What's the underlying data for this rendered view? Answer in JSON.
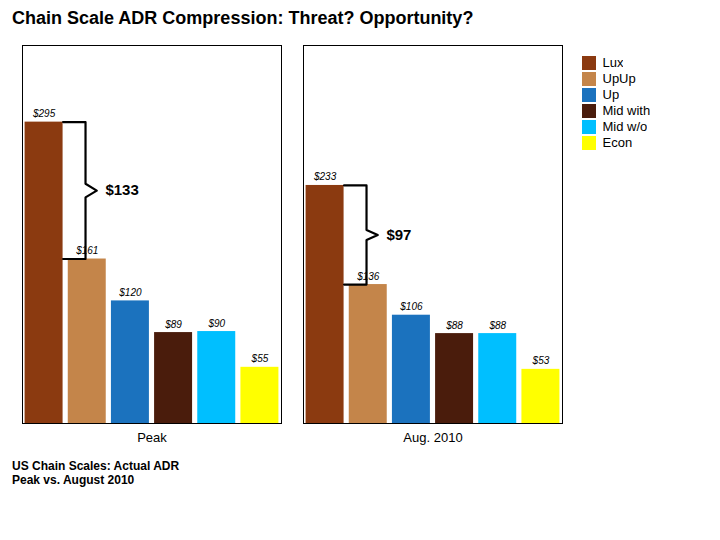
{
  "chart_data": {
    "type": "bar",
    "title": "Chain Scale ADR Compression: Threat? Opportunity?",
    "subtitle": "US Chain Scales: Actual ADR\nPeak vs. August 2010",
    "categories": [
      "Peak",
      "Aug. 2010"
    ],
    "series": [
      {
        "name": "Lux",
        "color": "#8B3A10",
        "values": [
          295,
          233
        ],
        "value_labels": [
          "$295",
          "$233"
        ]
      },
      {
        "name": "UpUp",
        "color": "#C4854A",
        "values": [
          161,
          136
        ],
        "value_labels": [
          "$161",
          "$136"
        ]
      },
      {
        "name": "Up",
        "color": "#1B72BE",
        "values": [
          120,
          106
        ],
        "value_labels": [
          "$120",
          "$106"
        ]
      },
      {
        "name": "Mid with",
        "color": "#4A1C0C",
        "values": [
          89,
          88
        ],
        "value_labels": [
          "$89",
          "$88"
        ]
      },
      {
        "name": "Mid w/o",
        "color": "#00BFFF",
        "values": [
          90,
          88
        ],
        "value_labels": [
          "$90",
          "$88"
        ]
      },
      {
        "name": "Econ",
        "color": "#FFFF00",
        "values": [
          55,
          53
        ],
        "value_labels": [
          "$55",
          "$53"
        ]
      }
    ],
    "annotations": [
      {
        "text": "$133",
        "group": "Peak",
        "series": "Lux",
        "low": 161,
        "high": 295
      },
      {
        "text": "$97",
        "group": "Aug. 2010",
        "series": "Lux",
        "low": 136,
        "high": 233
      }
    ],
    "ylim": [
      0,
      370
    ],
    "data_labels": true,
    "tick_labels": "x",
    "grid": false,
    "legend": "right"
  }
}
